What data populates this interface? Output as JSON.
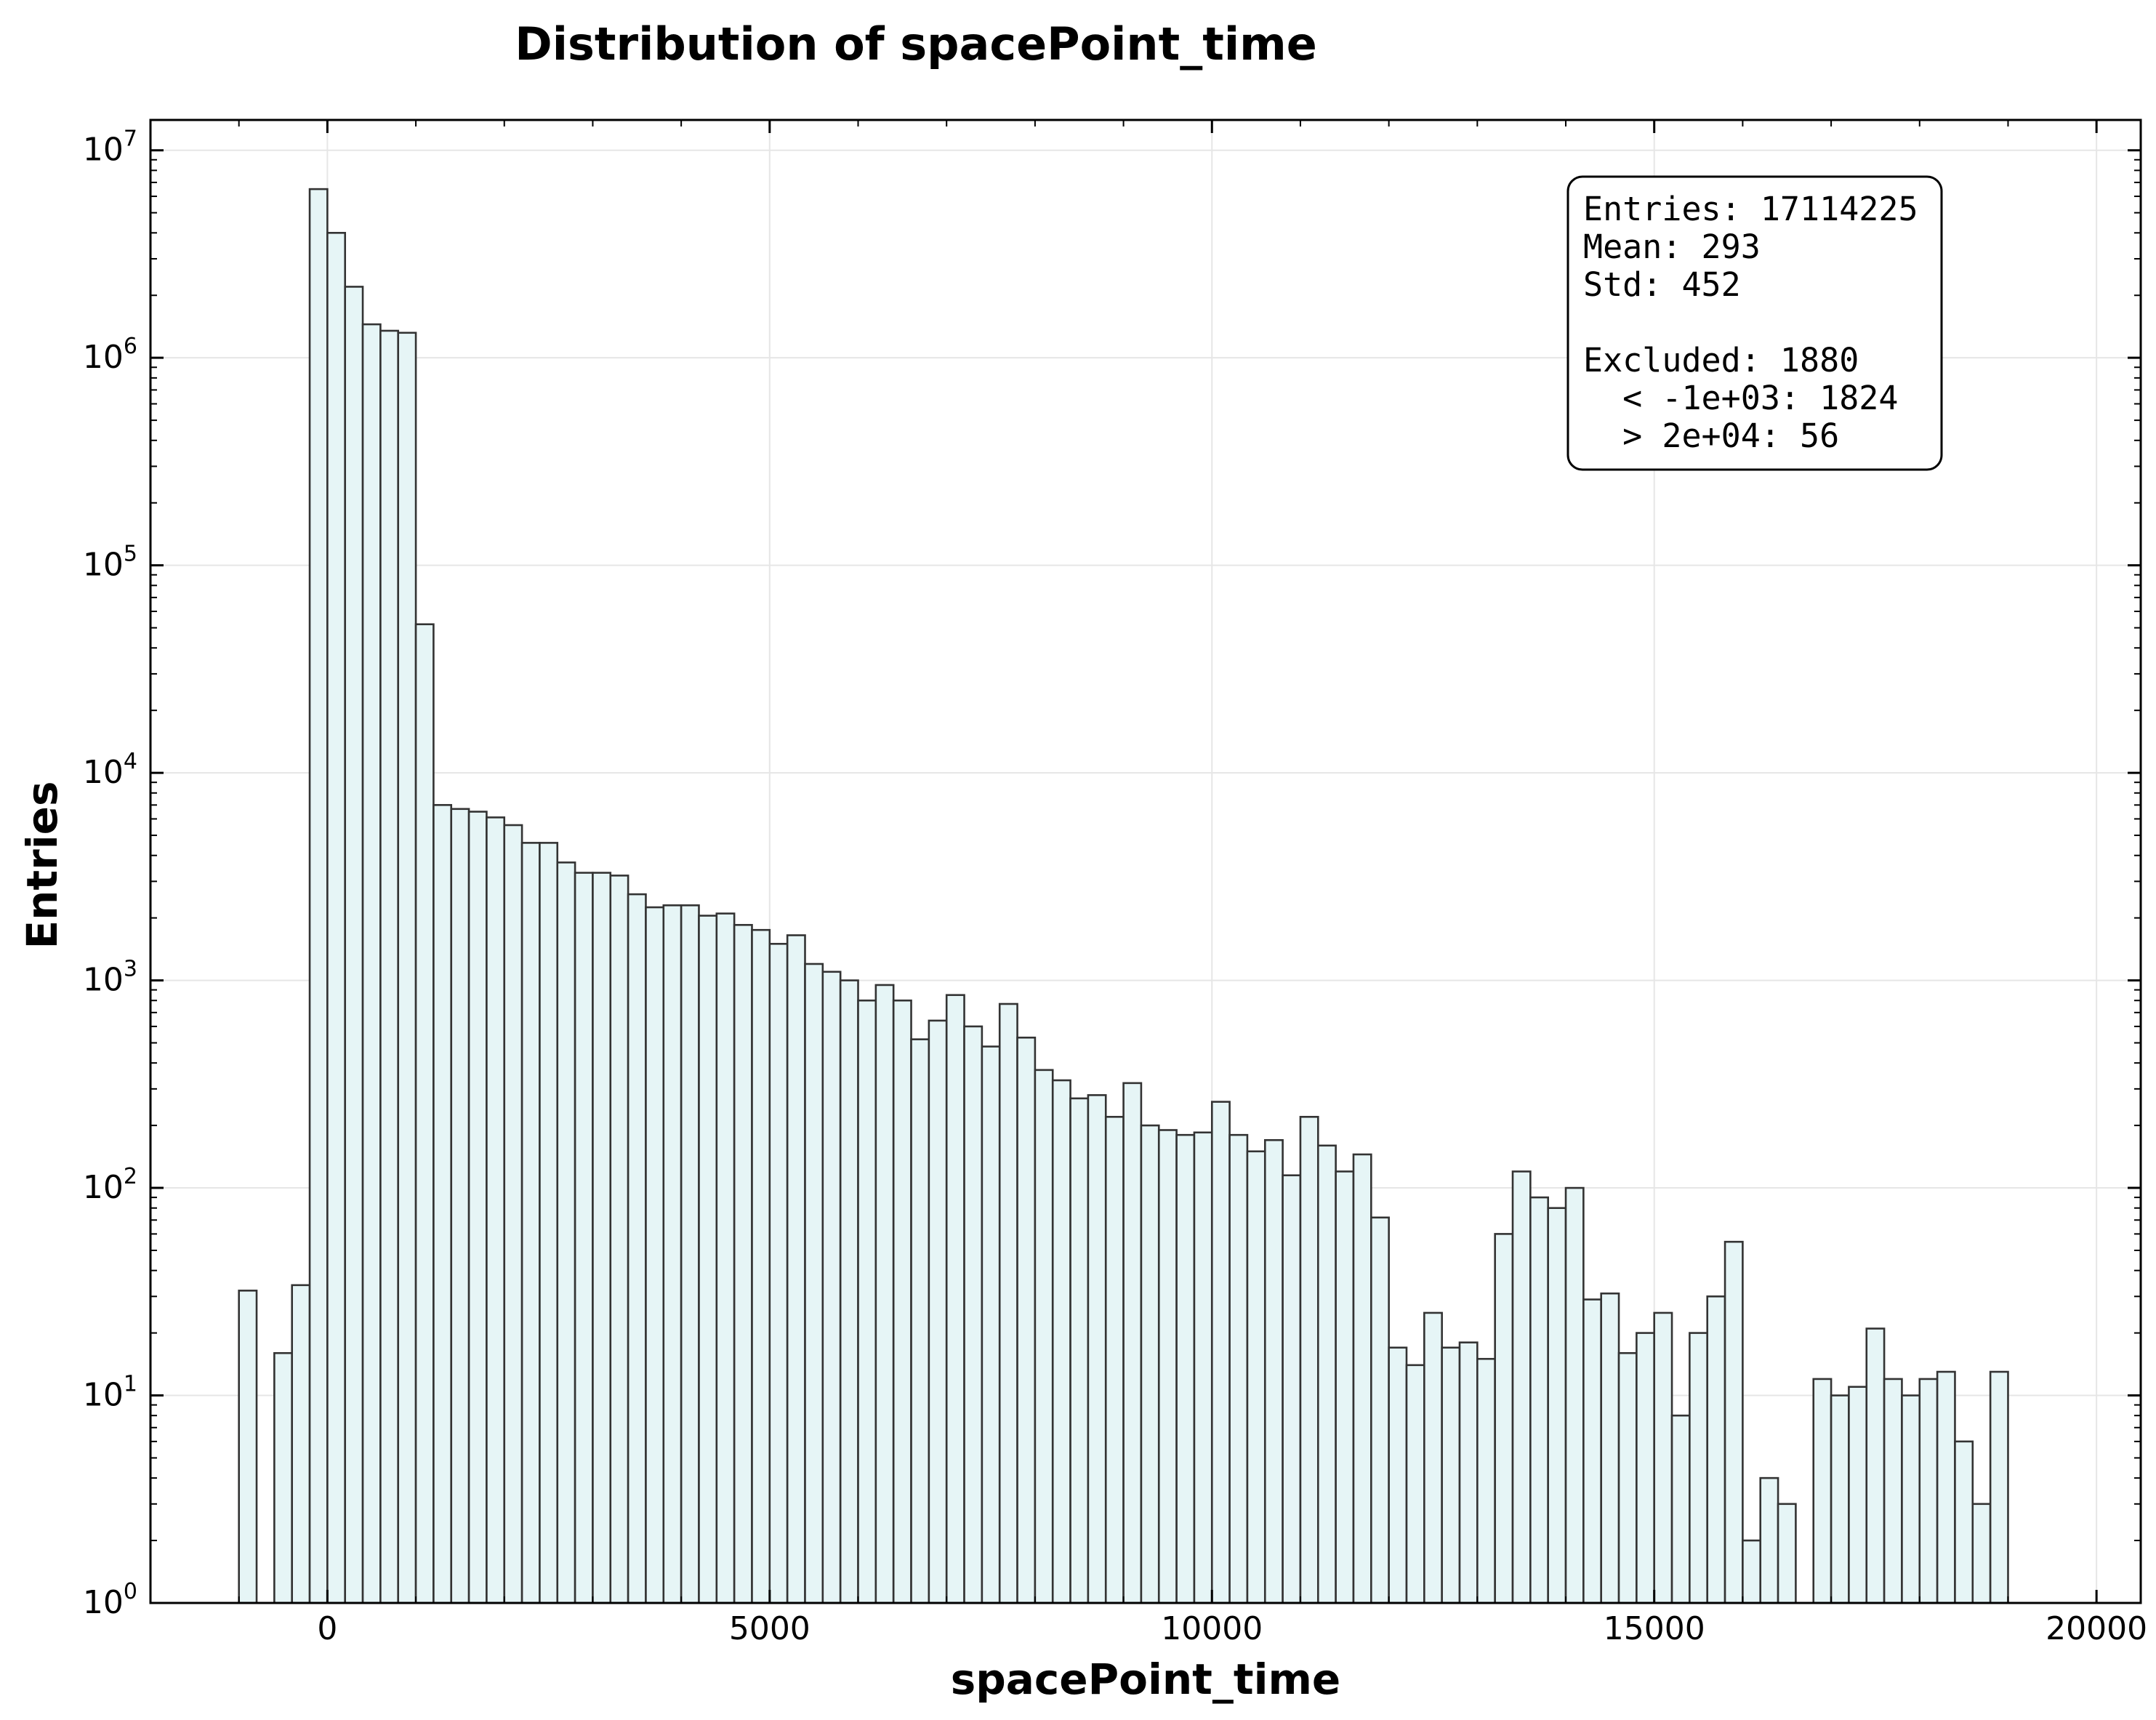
{
  "chart_data": {
    "type": "bar",
    "title": "Distribution of spacePoint_time",
    "xlabel": "spacePoint_time",
    "ylabel": "Entries",
    "yscale": "log",
    "xlim": [
      -2000,
      20500
    ],
    "ylim": [
      1,
      14000000
    ],
    "grid": true,
    "bar_color": "#e6f5f6",
    "edge_color": "#333333",
    "x_ticks": [
      0,
      5000,
      10000,
      15000,
      20000
    ],
    "x_tick_labels": [
      "0",
      "5000",
      "10000",
      "15000",
      "20000"
    ],
    "y_ticks": [
      1,
      10,
      100,
      1000,
      10000,
      100000,
      1000000,
      10000000
    ],
    "y_tick_exponents": [
      "0",
      "1",
      "2",
      "3",
      "4",
      "5",
      "6",
      "7"
    ],
    "y_tick_base": "10",
    "bin_start": -1000,
    "bin_width": 200,
    "values": [
      32,
      0,
      16,
      34,
      6500000,
      4000000,
      2200000,
      1450000,
      1350000,
      1320000,
      52000,
      7000,
      6700,
      6500,
      6100,
      5600,
      4600,
      4600,
      3700,
      3300,
      3300,
      3200,
      2600,
      2250,
      2300,
      2300,
      2050,
      2100,
      1850,
      1750,
      1500,
      1650,
      1200,
      1100,
      1000,
      800,
      950,
      800,
      520,
      640,
      850,
      600,
      480,
      770,
      530,
      370,
      330,
      270,
      280,
      220,
      320,
      200,
      190,
      180,
      185,
      260,
      180,
      150,
      170,
      115,
      220,
      160,
      120,
      145,
      72,
      17,
      14,
      25,
      17,
      18,
      15,
      60,
      120,
      90,
      80,
      100,
      29,
      31,
      16,
      20,
      25,
      8,
      20,
      30,
      55,
      2,
      4,
      3,
      0,
      12,
      10,
      11,
      21,
      12,
      10,
      12,
      13,
      6,
      3,
      13
    ],
    "stats_box": {
      "position": "top-right",
      "lines": [
        "Entries: 17114225",
        "Mean: 293",
        "Std: 452",
        "",
        "Excluded: 1880",
        "  < -1e+03: 1824",
        "  > 2e+04: 56"
      ]
    }
  }
}
